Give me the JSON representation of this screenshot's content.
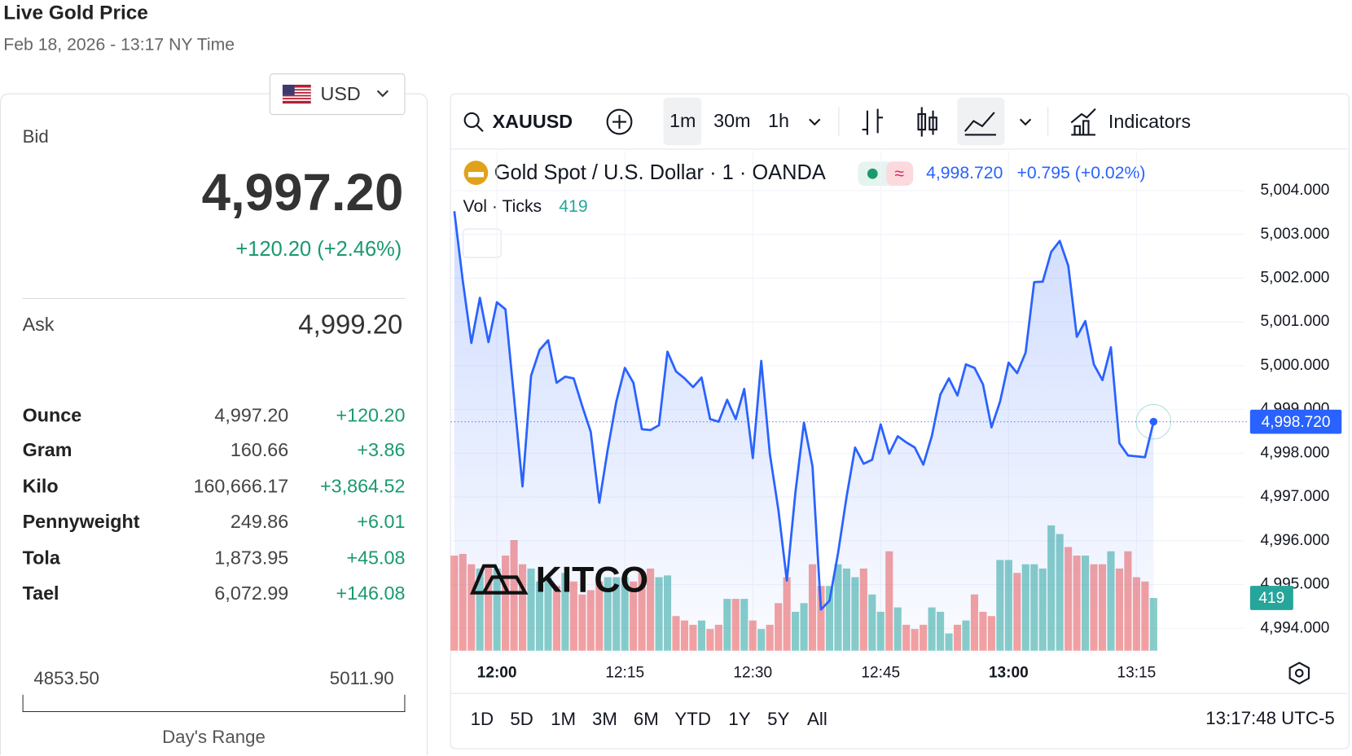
{
  "header": {
    "title": "Live Gold Price",
    "timestamp": "Feb 18, 2026 - 13:17 NY Time"
  },
  "currency": "USD",
  "quote": {
    "bid_label": "Bid",
    "bid": "4,997.20",
    "change": "+120.20 (+2.46%)",
    "ask_label": "Ask",
    "ask": "4,999.20"
  },
  "units": {
    "rows": [
      [
        "Ounce",
        "4,997.20",
        "+120.20"
      ],
      [
        "Gram",
        "160.66",
        "+3.86"
      ],
      [
        "Kilo",
        "160,666.17",
        "+3,864.52"
      ],
      [
        "Pennyweight",
        "249.86",
        "+6.01"
      ],
      [
        "Tola",
        "1,873.95",
        "+45.08"
      ],
      [
        "Tael",
        "6,072.99",
        "+146.08"
      ]
    ]
  },
  "day_range": {
    "low": "4853.50",
    "high": "5011.90",
    "label": "Day's Range"
  },
  "widget": {
    "symbol": "XAUUSD",
    "intervals": [
      "1m",
      "30m",
      "1h"
    ],
    "indicators": "Indicators",
    "legend": {
      "name": "Gold Spot / U.S. Dollar · 1 · OANDA",
      "last": "4,998.720",
      "change": "+0.795 (+0.02%)"
    },
    "volume_label": "Vol · Ticks",
    "volume_last": "419",
    "logo": "KITCO",
    "ranges": [
      "1D",
      "5D",
      "1M",
      "3M",
      "6M",
      "YTD",
      "1Y",
      "5Y",
      "All"
    ],
    "clock": "13:17:48 UTC-5"
  },
  "chart": {
    "type": "line",
    "color": "#2962ff",
    "up_color": "#26a69a",
    "down_color": "#ef5350",
    "x": [
      "11:55",
      "11:56",
      "11:57",
      "11:58",
      "11:59",
      "12:00",
      "12:01",
      "12:02",
      "12:03",
      "12:04",
      "12:05",
      "12:06",
      "12:07",
      "12:08",
      "12:09",
      "12:10",
      "12:11",
      "12:12",
      "12:13",
      "12:14",
      "12:15",
      "12:16",
      "12:17",
      "12:18",
      "12:19",
      "12:20",
      "12:21",
      "12:22",
      "12:23",
      "12:24",
      "12:25",
      "12:26",
      "12:27",
      "12:28",
      "12:29",
      "12:30",
      "12:31",
      "12:32",
      "12:33",
      "12:34",
      "12:35",
      "12:36",
      "12:37",
      "12:38",
      "12:39",
      "12:40",
      "12:41",
      "12:42",
      "12:43",
      "12:44",
      "12:45",
      "12:46",
      "12:47",
      "12:48",
      "12:49",
      "12:50",
      "12:51",
      "12:52",
      "12:53",
      "12:54",
      "12:55",
      "12:56",
      "12:57",
      "12:58",
      "12:59",
      "13:00",
      "13:01",
      "13:02",
      "13:03",
      "13:04",
      "13:05",
      "13:06",
      "13:07",
      "13:08",
      "13:09",
      "13:10",
      "13:11",
      "13:12",
      "13:13",
      "13:14",
      "13:15",
      "13:16",
      "13:17"
    ],
    "values": [
      5003.53,
      5001.94,
      5000.52,
      5001.55,
      5000.54,
      5001.45,
      5001.29,
      4999.28,
      4997.24,
      4999.77,
      5000.36,
      5000.58,
      4999.61,
      4999.75,
      4999.71,
      4999.08,
      4998.49,
      4996.87,
      4998.09,
      4999.18,
      4999.95,
      4999.61,
      4998.55,
      4998.53,
      4998.64,
      5000.32,
      4999.87,
      4999.71,
      4999.51,
      4999.73,
      4998.78,
      4998.72,
      4999.22,
      4998.78,
      4999.47,
      4997.89,
      5000.11,
      4997.99,
      4996.71,
      4995.09,
      4997.1,
      4998.7,
      4997.7,
      4994.43,
      4994.63,
      4995.72,
      4997.0,
      4998.13,
      4997.76,
      4997.85,
      4998.66,
      4997.99,
      4998.39,
      4998.25,
      4998.13,
      4997.74,
      4998.39,
      4999.34,
      4999.71,
      4999.32,
      5000.03,
      4999.95,
      4999.57,
      4998.59,
      4999.18,
      5000.07,
      4999.83,
      5000.3,
      5001.91,
      5001.92,
      5002.6,
      5002.85,
      5002.28,
      5000.66,
      5001.02,
      5000.03,
      4999.67,
      5000.42,
      4998.23,
      4997.95,
      4997.93,
      4997.91,
      4998.72
    ],
    "volume": [
      756,
      769,
      687,
      653,
      687,
      653,
      756,
      879,
      687,
      653,
      550,
      584,
      515,
      618,
      550,
      447,
      481,
      550,
      584,
      584,
      584,
      550,
      618,
      653,
      584,
      598,
      275,
      240,
      206,
      240,
      172,
      206,
      412,
      412,
      412,
      240,
      172,
      206,
      378,
      584,
      309,
      378,
      687,
      515,
      515,
      687,
      653,
      584,
      653,
      447,
      309,
      790,
      344,
      206,
      172,
      206,
      344,
      309,
      137,
      206,
      240,
      447,
      309,
      275,
      721,
      721,
      618,
      687,
      687,
      653,
      996,
      927,
      824,
      756,
      756,
      687,
      687,
      790,
      653,
      790,
      584,
      550,
      419
    ],
    "xlim": [
      "11:54",
      "13:27"
    ],
    "xticks": [
      "12:00",
      "12:15",
      "12:30",
      "12:45",
      "13:00",
      "13:15"
    ],
    "ylim": [
      4993.45,
      5004.9
    ],
    "yticks": [
      {
        "value": 4994,
        "label": "4,994.000"
      },
      {
        "value": 4995,
        "label": "4,995.000"
      },
      {
        "value": 4996,
        "label": "4,996.000"
      },
      {
        "value": 4997,
        "label": "4,997.000"
      },
      {
        "value": 4998,
        "label": "4,998.000"
      },
      {
        "value": 4999,
        "label": "4,999.000"
      },
      {
        "value": 5000,
        "label": "5,000.000"
      },
      {
        "value": 5001,
        "label": "5,001.000"
      },
      {
        "value": 5002,
        "label": "5,002.000"
      },
      {
        "value": 5003,
        "label": "5,003.000"
      },
      {
        "value": 5004,
        "label": "5,004.000"
      }
    ],
    "grid": true
  }
}
